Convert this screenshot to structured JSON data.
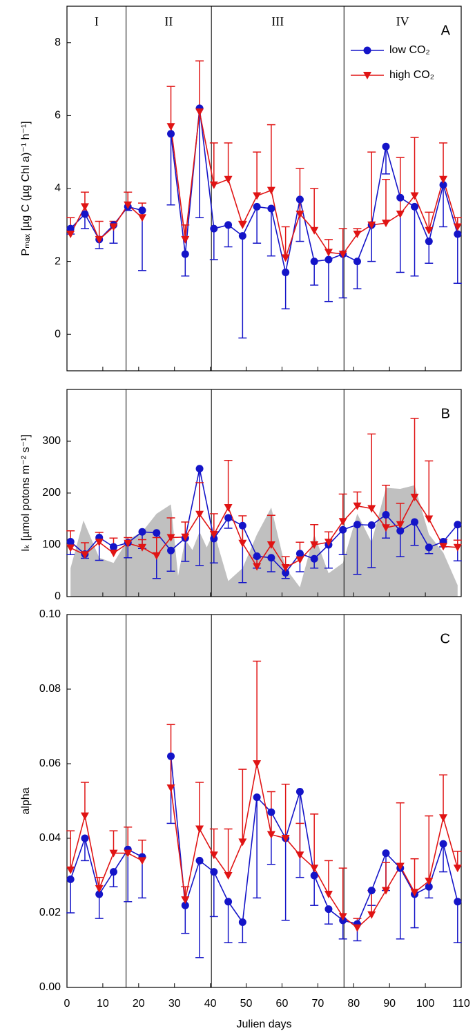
{
  "chart_data": [
    {
      "type": "line",
      "panel_label": "A",
      "ylabel": "Pₘₐₓ [µg C (µg Chl a)⁻¹ h⁻¹]",
      "xlim": [
        0,
        110
      ],
      "xticks": [
        0,
        10,
        20,
        30,
        40,
        50,
        60,
        70,
        80,
        90,
        100,
        110
      ],
      "show_xtick_labels": false,
      "ylim": [
        -1,
        9
      ],
      "yticks": [
        0,
        2,
        4,
        6,
        8
      ],
      "dividers": [
        16.5,
        40.3,
        77.3
      ],
      "periods": [
        "I",
        "II",
        "III",
        "IV"
      ],
      "legend": "upper right",
      "x": [
        1,
        5,
        9,
        13,
        17,
        21,
        25,
        29,
        33,
        37,
        41,
        45,
        49,
        53,
        57,
        61,
        65,
        69,
        73,
        77,
        81,
        85,
        89,
        93,
        97,
        101,
        105,
        109
      ],
      "series": [
        {
          "name": "low CO₂",
          "color": "#1414c8",
          "marker": "circle",
          "error_direction": "down",
          "values": [
            2.9,
            3.3,
            2.6,
            3.0,
            3.5,
            3.4,
            null,
            5.5,
            2.2,
            6.2,
            2.9,
            3.0,
            2.7,
            3.5,
            3.45,
            1.7,
            3.7,
            2.0,
            2.05,
            2.2,
            2.0,
            3.0,
            5.15,
            3.75,
            3.5,
            2.55,
            4.1,
            2.75
          ],
          "errors": [
            0.15,
            0.4,
            0.25,
            0.5,
            0.1,
            1.65,
            null,
            1.95,
            0.6,
            3.0,
            0.85,
            0.6,
            2.8,
            1.0,
            1.3,
            1.0,
            1.15,
            0.65,
            1.15,
            1.2,
            0.75,
            1.0,
            0.75,
            2.05,
            1.9,
            0.6,
            1.15,
            1.35
          ]
        },
        {
          "name": "high CO₂",
          "color": "#e01414",
          "marker": "triangle-down",
          "error_direction": "up",
          "values": [
            2.75,
            3.5,
            2.6,
            2.95,
            3.55,
            3.2,
            null,
            5.7,
            2.6,
            6.1,
            4.1,
            4.25,
            3.0,
            3.8,
            3.95,
            2.1,
            3.3,
            2.85,
            2.25,
            2.2,
            2.75,
            3.0,
            3.05,
            3.3,
            3.8,
            2.85,
            4.25,
            2.95
          ],
          "errors": [
            0.45,
            0.4,
            0.5,
            0.15,
            0.35,
            0.4,
            null,
            1.1,
            0.4,
            1.4,
            1.15,
            1.0,
            0.1,
            1.2,
            1.8,
            0.85,
            1.25,
            1.15,
            0.35,
            0.7,
            0.15,
            2.0,
            1.2,
            1.55,
            1.6,
            0.5,
            1.0,
            0.25
          ]
        }
      ]
    },
    {
      "type": "line",
      "panel_label": "B",
      "ylabel": "Iₖ [µmol potons m⁻² s⁻¹]",
      "xlim": [
        0,
        110
      ],
      "xticks": [
        0,
        10,
        20,
        30,
        40,
        50,
        60,
        70,
        80,
        90,
        100,
        110
      ],
      "show_xtick_labels": false,
      "ylim": [
        0,
        400
      ],
      "yticks": [
        0,
        100,
        200,
        300
      ],
      "dividers": [
        16.5,
        40.3,
        77.3
      ],
      "shade": {
        "color": "#c0c0c0",
        "x": [
          1,
          4.6,
          9,
          13,
          17,
          21,
          25,
          29,
          31,
          33,
          35,
          37,
          39,
          41,
          45,
          49,
          53,
          57,
          61,
          65,
          69,
          73,
          77,
          81,
          85,
          89,
          93,
          97,
          101,
          105,
          109
        ],
        "values": [
          55,
          147,
          75,
          65,
          110,
          125,
          160,
          178,
          40,
          110,
          90,
          125,
          95,
          125,
          30,
          55,
          120,
          172,
          55,
          18,
          120,
          45,
          65,
          160,
          105,
          210,
          208,
          215,
          120,
          85,
          22
        ]
      },
      "x": [
        1,
        5,
        9,
        13,
        17,
        21,
        25,
        29,
        33,
        37,
        41,
        45,
        49,
        53,
        57,
        61,
        65,
        69,
        73,
        77,
        81,
        85,
        89,
        93,
        97,
        101,
        105,
        109
      ],
      "series": [
        {
          "color": "#1414c8",
          "marker": "circle",
          "error_direction": "down",
          "values": [
            106,
            82,
            114,
            96,
            104,
            125,
            123,
            89,
            113,
            247,
            112,
            152,
            137,
            78,
            75,
            46,
            83,
            73,
            100,
            129,
            139,
            138,
            158,
            127,
            144,
            95,
            106,
            139
          ],
          "errors": [
            25,
            8,
            44,
            6,
            29,
            32,
            88,
            40,
            45,
            187,
            47,
            20,
            110,
            23,
            27,
            11,
            35,
            18,
            45,
            48,
            96,
            82,
            45,
            50,
            45,
            12,
            10,
            70
          ]
        },
        {
          "color": "#e01414",
          "marker": "triangle-down",
          "error_direction": "up",
          "values": [
            94,
            81,
            105,
            84,
            103,
            95,
            79,
            114,
            115,
            159,
            120,
            172,
            103,
            58,
            100,
            56,
            71,
            100,
            105,
            145,
            175,
            170,
            133,
            139,
            192,
            150,
            97,
            95
          ],
          "errors": [
            33,
            23,
            19,
            29,
            11,
            15,
            35,
            38,
            29,
            61,
            40,
            91,
            53,
            17,
            57,
            21,
            34,
            39,
            20,
            53,
            27,
            144,
            82,
            41,
            152,
            112,
            13,
            14
          ]
        }
      ]
    },
    {
      "type": "line",
      "panel_label": "C",
      "ylabel": "alpha",
      "xlabel": "Julien days",
      "xlim": [
        0,
        110
      ],
      "xticks": [
        0,
        10,
        20,
        30,
        40,
        50,
        60,
        70,
        80,
        90,
        100,
        110
      ],
      "show_xtick_labels": true,
      "ylim": [
        0,
        0.1
      ],
      "yticks": [
        {
          "value": 0,
          "label": "0.00"
        },
        {
          "value": 0.02,
          "label": "0.02"
        },
        {
          "value": 0.04,
          "label": "0.04"
        },
        {
          "value": 0.06,
          "label": "0.06"
        },
        {
          "value": 0.08,
          "label": "0.08"
        },
        {
          "value": 0.1,
          "label": "0.10"
        }
      ],
      "dividers": [
        16.5,
        40.3,
        77.3
      ],
      "x": [
        1,
        5,
        9,
        13,
        17,
        21,
        25,
        29,
        33,
        37,
        41,
        45,
        49,
        53,
        57,
        61,
        65,
        69,
        73,
        77,
        81,
        85,
        89,
        93,
        97,
        101,
        105,
        109
      ],
      "series": [
        {
          "color": "#1414c8",
          "marker": "circle",
          "error_direction": "down",
          "values": [
            0.029,
            0.04,
            0.025,
            0.031,
            0.037,
            0.035,
            null,
            0.062,
            0.022,
            0.034,
            0.031,
            0.023,
            0.0175,
            0.051,
            0.047,
            0.04,
            0.0525,
            0.03,
            0.021,
            0.018,
            0.017,
            0.026,
            0.036,
            0.032,
            0.025,
            0.027,
            0.0385,
            0.023
          ],
          "errors": [
            0.009,
            0.006,
            0.0065,
            0.004,
            0.014,
            0.011,
            null,
            0.018,
            0.0075,
            0.026,
            0.012,
            0.011,
            0.0055,
            0.027,
            0.014,
            0.022,
            0.023,
            0.008,
            0.004,
            0.005,
            0.0045,
            0.004,
            0.01,
            0.019,
            0.009,
            0.003,
            0.0075,
            0.011
          ]
        },
        {
          "color": "#e01414",
          "marker": "triangle-down",
          "error_direction": "up",
          "values": [
            0.0315,
            0.046,
            0.0265,
            0.036,
            0.036,
            0.034,
            null,
            0.0535,
            0.0235,
            0.0425,
            0.0355,
            0.03,
            0.039,
            0.06,
            0.041,
            0.04,
            0.0355,
            0.032,
            0.025,
            0.019,
            0.016,
            0.0195,
            0.026,
            0.0325,
            0.0255,
            0.0285,
            0.0455,
            0.032
          ],
          "errors": [
            0.0105,
            0.009,
            0.003,
            0.006,
            0.007,
            0.0055,
            null,
            0.017,
            0.0035,
            0.0125,
            0.007,
            0.0125,
            0.0195,
            0.0275,
            0.0115,
            0.0145,
            0.0085,
            0.0145,
            0.009,
            0.013,
            0.0025,
            0.0065,
            0.0075,
            0.017,
            0.009,
            0.0175,
            0.0115,
            0.0045
          ]
        }
      ]
    }
  ]
}
